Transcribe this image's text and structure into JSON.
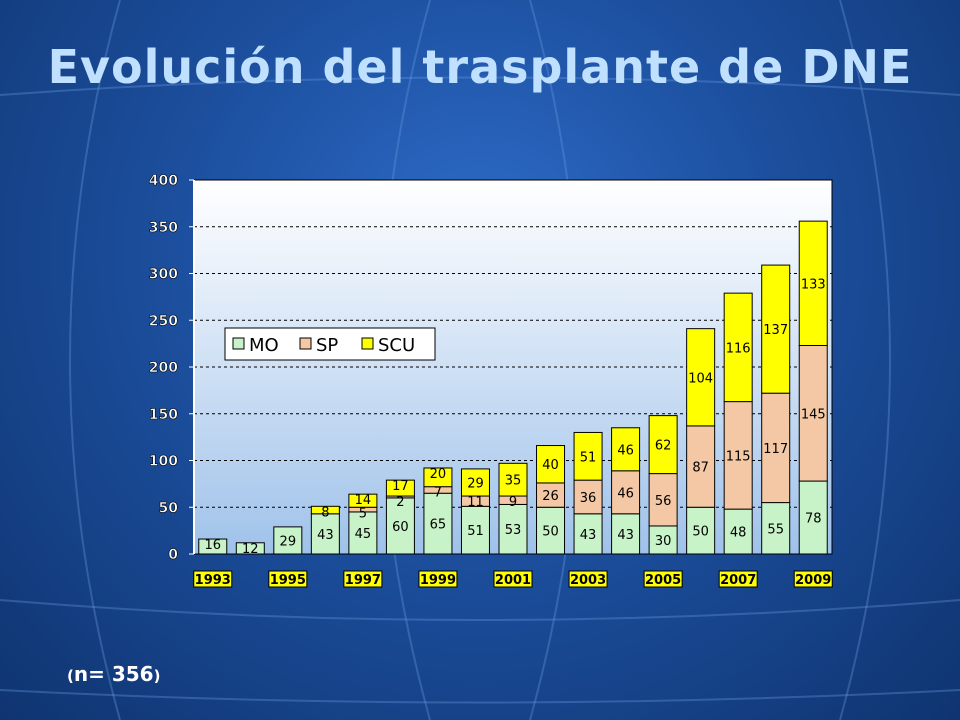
{
  "slide": {
    "title": "Evolución del trasplante de DNE",
    "n_prefix": "(",
    "n_text": "n= 356",
    "n_suffix": ")"
  },
  "colors": {
    "MO": "#c8f2c8",
    "SP": "#f4c8a4",
    "SCU": "#ffff00",
    "plot_bg_top": "#ffffff",
    "plot_bg_bottom": "#9fc2ea",
    "tick_label_fill": "#ffff00"
  },
  "chart_data": {
    "type": "bar",
    "stacked": true,
    "title": "",
    "xlabel": "",
    "ylabel": "",
    "ylim": [
      0,
      400
    ],
    "yticks": [
      0,
      50,
      100,
      150,
      200,
      250,
      300,
      350,
      400
    ],
    "grid": "horizontal dashed",
    "legend_position": "upper-left",
    "categories": [
      "1993",
      "1994",
      "1995",
      "1996",
      "1997",
      "1998",
      "1999",
      "2000",
      "2001",
      "2002",
      "2003",
      "2004",
      "2005",
      "2006",
      "2007",
      "2008",
      "2009"
    ],
    "x_tick_labels": [
      "1993",
      "",
      "1995",
      "",
      "1997",
      "",
      "1999",
      "",
      "2001",
      "",
      "2003",
      "",
      "2005",
      "",
      "2007",
      "",
      "2009"
    ],
    "series": [
      {
        "name": "MO",
        "values": [
          16,
          12,
          29,
          43,
          45,
          60,
          65,
          51,
          53,
          50,
          43,
          43,
          30,
          50,
          48,
          55,
          78
        ]
      },
      {
        "name": "SP",
        "values": [
          0,
          0,
          0,
          0,
          5,
          2,
          7,
          11,
          9,
          26,
          36,
          46,
          56,
          87,
          115,
          117,
          145
        ]
      },
      {
        "name": "SCU",
        "values": [
          0,
          0,
          0,
          8,
          14,
          17,
          20,
          29,
          35,
          40,
          51,
          46,
          62,
          104,
          116,
          137,
          133
        ]
      }
    ]
  }
}
